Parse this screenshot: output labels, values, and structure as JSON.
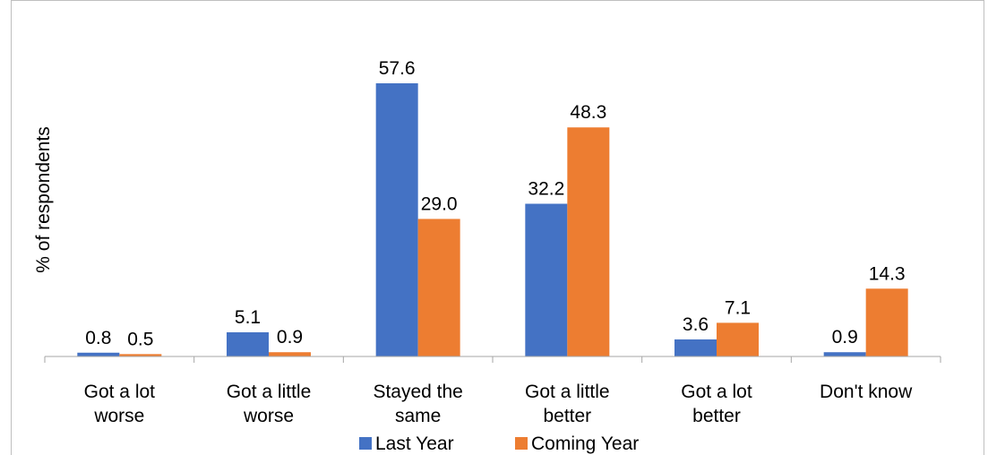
{
  "chart_data": {
    "type": "bar",
    "title": "",
    "xlabel": "",
    "ylabel": "% of respondents",
    "categories": [
      [
        "Got a lot",
        "worse"
      ],
      [
        "Got a little",
        "worse"
      ],
      [
        "Stayed the",
        "same"
      ],
      [
        "Got a little",
        "better"
      ],
      [
        "Got a lot",
        "better"
      ],
      [
        "Don't know"
      ]
    ],
    "series": [
      {
        "name": "Last Year",
        "color": "#4472c4",
        "values": [
          0.8,
          5.1,
          57.6,
          32.2,
          3.6,
          0.9
        ],
        "labels": [
          "0.8",
          "5.1",
          "57.6",
          "32.2",
          "3.6",
          "0.9"
        ]
      },
      {
        "name": "Coming Year",
        "color": "#ed7d31",
        "values": [
          0.5,
          0.9,
          29.0,
          48.3,
          7.1,
          14.3
        ],
        "labels": [
          "0.5",
          "0.9",
          "29.0",
          "48.3",
          "7.1",
          "14.3"
        ]
      }
    ],
    "ylim": [
      0,
      60
    ],
    "grid": false,
    "legend": "bottom"
  }
}
